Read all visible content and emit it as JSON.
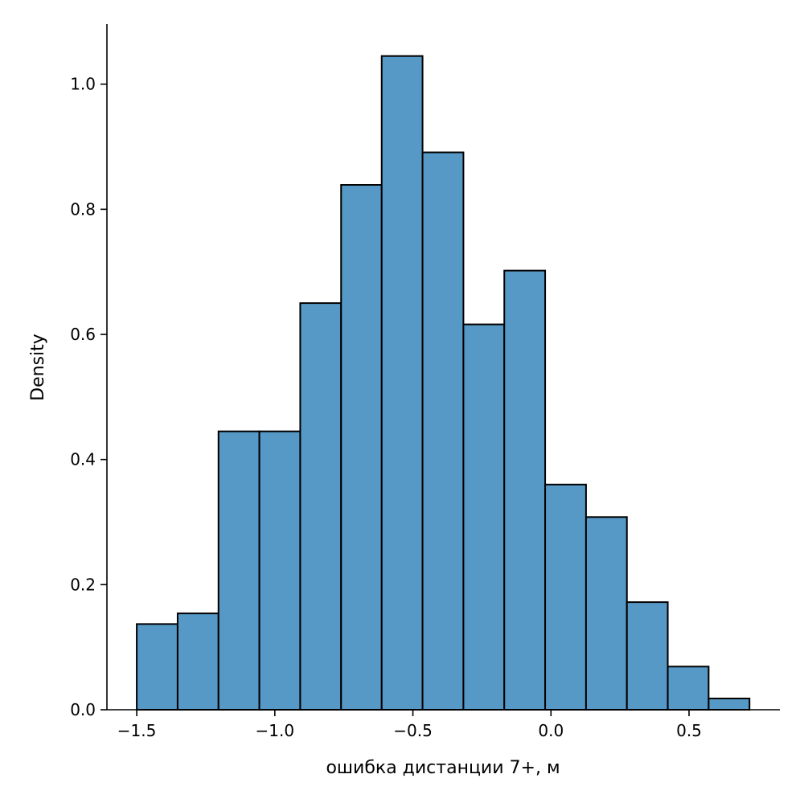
{
  "chart_data": {
    "type": "bar",
    "subtype": "histogram",
    "title": "",
    "xlabel": "ошибка дистанции 7+, м",
    "ylabel": "Density",
    "xlim": [
      -1.608,
      0.829
    ],
    "ylim": [
      0,
      1.096
    ],
    "xticks": [
      -1.5,
      -1.0,
      -0.5,
      0.0,
      0.5
    ],
    "xtick_labels": [
      "−1.5",
      "−1.0",
      "−0.5",
      "0.0",
      "0.5"
    ],
    "yticks": [
      0,
      0.2,
      0.4,
      0.6,
      0.8,
      1.0
    ],
    "ytick_labels": [
      "0.0",
      "0.2",
      "0.4",
      "0.6",
      "0.8",
      "1.0"
    ],
    "bin_edges": [
      -1.5,
      -1.352,
      -1.204,
      -1.056,
      -0.908,
      -0.76,
      -0.613,
      -0.465,
      -0.317,
      -0.169,
      -0.021,
      0.127,
      0.275,
      0.423,
      0.571,
      0.719
    ],
    "values": [
      0.137,
      0.154,
      0.445,
      0.445,
      0.65,
      0.839,
      1.045,
      0.891,
      0.616,
      0.702,
      0.36,
      0.308,
      0.172,
      0.069,
      0.018
    ],
    "grid": false,
    "bar_color": "#5799c6",
    "edge_color": "#000000"
  }
}
